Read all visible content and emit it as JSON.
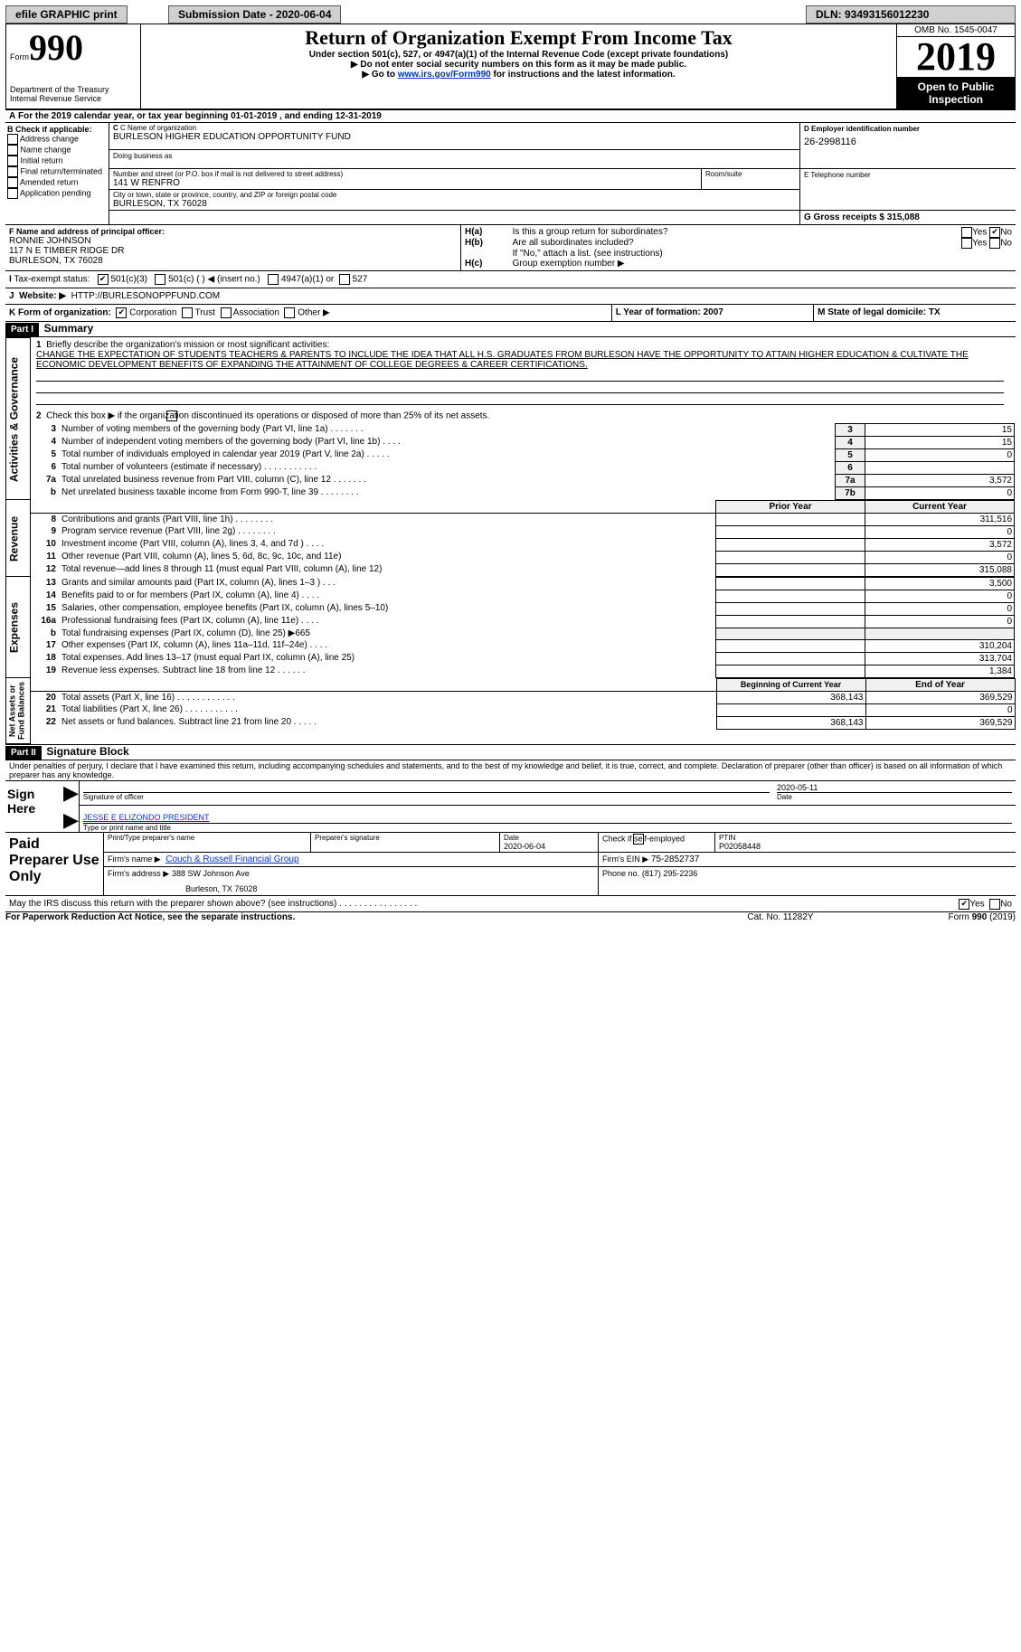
{
  "topbar": {
    "efile": "efile GRAPHIC print",
    "sub_label": "Submission Date - 2020-06-04",
    "dln": "DLN: 93493156012230"
  },
  "header": {
    "form_small": "Form",
    "form_big": "990",
    "title": "Return of Organization Exempt From Income Tax",
    "subtitle1": "Under section 501(c), 527, or 4947(a)(1) of the Internal Revenue Code (except private foundations)",
    "subtitle2": "▶ Do not enter social security numbers on this form as it may be made public.",
    "subtitle3_pre": "▶ Go to ",
    "subtitle3_link": "www.irs.gov/Form990",
    "subtitle3_post": " for instructions and the latest information.",
    "dept1": "Department of the Treasury",
    "dept2": "Internal Revenue Service",
    "omb": "OMB No. 1545-0047",
    "year": "2019",
    "open": "Open to Public Inspection"
  },
  "A_line": "For the 2019 calendar year, or tax year beginning 01-01-2019   , and ending 12-31-2019",
  "B": {
    "label": "B Check if applicable:",
    "addr": "Address change",
    "name": "Name change",
    "init": "Initial return",
    "final": "Final return/terminated",
    "amend": "Amended return",
    "app": "Application pending"
  },
  "C": {
    "label": "C Name of organization",
    "org": "BURLESON HIGHER EDUCATION OPPORTUNITY FUND",
    "dba_label": "Doing business as",
    "street_label": "Number and street (or P.O. box if mail is not delivered to street address)",
    "room_label": "Room/suite",
    "street": "141 W RENFRO",
    "city_label": "City or town, state or province, country, and ZIP or foreign postal code",
    "city": "BURLESON, TX  76028"
  },
  "D": {
    "label": "D Employer identification number",
    "val": "26-2998116"
  },
  "E": {
    "label": "E Telephone number"
  },
  "G": {
    "label": "G Gross receipts $ 315,088"
  },
  "F": {
    "label": "F   Name and address of principal officer:",
    "l1": "RONNIE JOHNSON",
    "l2": "117 N E TIMBER RIDGE DR",
    "l3": "BURLESON, TX  76028"
  },
  "H": {
    "a": "Is this a group return for subordinates?",
    "b": "Are all subordinates included?",
    "c_note": "If \"No,\" attach a list. (see instructions)",
    "c": "Group exemption number ▶"
  },
  "I": {
    "label": "Tax-exempt status:",
    "o1": "501(c)(3)",
    "o2": "501(c) (  ) ◀ (insert no.)",
    "o3": "4947(a)(1) or",
    "o4": "527"
  },
  "J": {
    "label": "Website: ▶",
    "val": "HTTP://BURLESONOPPFUND.COM"
  },
  "K": {
    "label": "K Form of organization:",
    "corp": "Corporation",
    "trust": "Trust",
    "assoc": "Association",
    "other": "Other ▶"
  },
  "L": {
    "label": "L Year of formation: 2007"
  },
  "M": {
    "label": "M State of legal domicile: TX"
  },
  "part1": {
    "hdr": "Part I",
    "title": "Summary",
    "l1": "Briefly describe the organization's mission or most significant activities:",
    "mission": "CHANGE THE EXPECTATION OF STUDENTS TEACHERS & PARENTS TO INCLUDE THE IDEA THAT ALL H.S. GRADUATES FROM BURLESON HAVE THE OPPORTUNITY TO ATTAIN HIGHER EDUCATION & CULTIVATE THE ECONOMIC DEVELOPMENT BENEFITS OF EXPANDING THE ATTAINMENT OF COLLEGE DEGREES & CAREER CERTIFICATIONS.",
    "l2": "Check this box ▶        if the organization discontinued its operations or disposed of more than 25% of its net assets.",
    "rows_ag": [
      {
        "n": "3",
        "t": "Number of voting members of the governing body (Part VI, line 1a)   .    .    .    .    .    .    .",
        "k": "3",
        "v": "15"
      },
      {
        "n": "4",
        "t": "Number of independent voting members of the governing body (Part VI, line 1b)   .    .    .    .",
        "k": "4",
        "v": "15"
      },
      {
        "n": "5",
        "t": "Total number of individuals employed in calendar year 2019 (Part V, line 2a)   .    .    .    .    .",
        "k": "5",
        "v": "0"
      },
      {
        "n": "6",
        "t": "Total number of volunteers (estimate if necessary)   .    .    .    .    .    .    .    .    .    .    .",
        "k": "6",
        "v": ""
      },
      {
        "n": "7a",
        "t": "Total unrelated business revenue from Part VIII, column (C), line 12   .    .    .    .    .    .    .",
        "k": "7a",
        "v": "3,572"
      },
      {
        "n": "b",
        "t": "Net unrelated business taxable income from Form 990-T, line 39    .    .    .    .    .    .    .    .",
        "k": "7b",
        "v": "0"
      }
    ],
    "prior_hdr": "Prior Year",
    "curr_hdr": "Current Year",
    "rows_rev": [
      {
        "n": "8",
        "t": "Contributions and grants (Part VIII, line 1h)   .    .    .    .    .    .    .    .",
        "p": "",
        "c": "311,516"
      },
      {
        "n": "9",
        "t": "Program service revenue (Part VIII, line 2g)   .    .    .    .    .    .    .    .",
        "p": "",
        "c": "0"
      },
      {
        "n": "10",
        "t": "Investment income (Part VIII, column (A), lines 3, 4, and 7d )   .    .    .    .",
        "p": "",
        "c": "3,572"
      },
      {
        "n": "11",
        "t": "Other revenue (Part VIII, column (A), lines 5, 6d, 8c, 9c, 10c, and 11e)",
        "p": "",
        "c": "0"
      },
      {
        "n": "12",
        "t": "Total revenue—add lines 8 through 11 (must equal Part VIII, column (A), line 12)",
        "p": "",
        "c": "315,088"
      }
    ],
    "rows_exp": [
      {
        "n": "13",
        "t": "Grants and similar amounts paid (Part IX, column (A), lines 1–3 )  .    .    .",
        "p": "",
        "c": "3,500"
      },
      {
        "n": "14",
        "t": "Benefits paid to or for members (Part IX, column (A), line 4)  .    .    .    .",
        "p": "",
        "c": "0"
      },
      {
        "n": "15",
        "t": "Salaries, other compensation, employee benefits (Part IX, column (A), lines 5–10)",
        "p": "",
        "c": "0"
      },
      {
        "n": "16a",
        "t": "Professional fundraising fees (Part IX, column (A), line 11e)   .    .    .    .",
        "p": "",
        "c": "0"
      },
      {
        "n": "b",
        "t": "Total fundraising expenses (Part IX, column (D), line 25) ▶665",
        "p": "",
        "c": ""
      },
      {
        "n": "17",
        "t": "Other expenses (Part IX, column (A), lines 11a–11d, 11f–24e)   .    .    .    .",
        "p": "",
        "c": "310,204"
      },
      {
        "n": "18",
        "t": "Total expenses. Add lines 13–17 (must equal Part IX, column (A), line 25)",
        "p": "",
        "c": "313,704"
      },
      {
        "n": "19",
        "t": "Revenue less expenses. Subtract line 18 from line 12   .    .    .    .    .    .",
        "p": "",
        "c": "1,384"
      }
    ],
    "beg_hdr": "Beginning of Current Year",
    "end_hdr": "End of Year",
    "rows_na": [
      {
        "n": "20",
        "t": "Total assets (Part X, line 16)  .    .    .    .    .    .    .    .    .    .    .    .",
        "p": "368,143",
        "c": "369,529"
      },
      {
        "n": "21",
        "t": "Total liabilities (Part X, line 26)  .    .    .    .    .    .    .    .    .    .    .",
        "p": "",
        "c": "0"
      },
      {
        "n": "22",
        "t": "Net assets or fund balances. Subtract line 21 from line 20   .    .    .    .    .",
        "p": "368,143",
        "c": "369,529"
      }
    ]
  },
  "part2": {
    "hdr": "Part II",
    "title": "Signature Block",
    "decl": "Under penalties of perjury, I declare that I have examined this return, including accompanying schedules and statements, and to the best of my knowledge and belief, it is true, correct, and complete. Declaration of preparer (other than officer) is based on all information of which preparer has any knowledge.",
    "sign": "Sign Here",
    "sig_off": "Signature of officer",
    "date": "Date",
    "dateval": "2020-05-11",
    "name": "JESSE E ELIZONDO PRESIDENT",
    "name_label": "Type or print name and title",
    "paid": "Paid Preparer Use Only",
    "prep_name_label": "Print/Type preparer's name",
    "prep_sig_label": "Preparer's signature",
    "prep_date_label": "Date",
    "prep_date": "2020-06-04",
    "check_se": "Check        if self-employed",
    "ptin_label": "PTIN",
    "ptin": "P02058448",
    "firm_name_label": "Firm's name    ▶",
    "firm_name": "Couch & Russell Financial Group",
    "firm_ein_label": "Firm's EIN ▶",
    "firm_ein": "75-2852737",
    "firm_addr_label": "Firm's address ▶",
    "firm_addr1": "388 SW Johnson Ave",
    "firm_addr2": "Burleson, TX  76028",
    "phone_label": "Phone no.",
    "phone": "(817) 295-2236",
    "discuss": "May the IRS discuss this return with the preparer shown above? (see instructions)   .    .    .    .    .    .    .    .    .    .    .    .    .    .    .    .",
    "footer_l": "For Paperwork Reduction Act Notice, see the separate instructions.",
    "footer_c": "Cat. No. 11282Y",
    "footer_r": "Form 990 (2019)"
  }
}
